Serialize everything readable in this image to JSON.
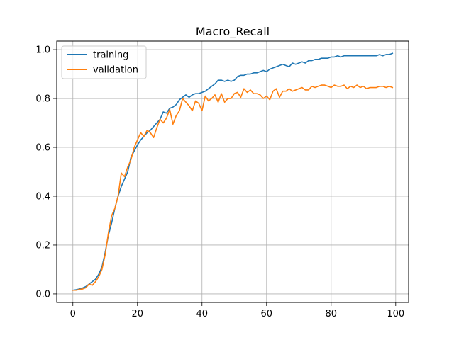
{
  "chart_data": {
    "type": "line",
    "title": "Macro_Recall",
    "xlabel": "",
    "ylabel": "",
    "xlim": [
      -5,
      104
    ],
    "ylim": [
      -0.035,
      1.035
    ],
    "xticks": [
      0,
      20,
      40,
      60,
      80,
      100
    ],
    "yticks": [
      0.0,
      0.2,
      0.4,
      0.6,
      0.8,
      1.0
    ],
    "xtick_labels": [
      "0",
      "20",
      "40",
      "60",
      "80",
      "100"
    ],
    "ytick_labels": [
      "0.0",
      "0.2",
      "0.4",
      "0.6",
      "0.8",
      "1.0"
    ],
    "grid": true,
    "legend_position": "top-left",
    "series": [
      {
        "name": "training",
        "color": "#1f77b4",
        "values": [
          0.015,
          0.017,
          0.02,
          0.024,
          0.03,
          0.04,
          0.05,
          0.06,
          0.08,
          0.11,
          0.17,
          0.24,
          0.29,
          0.35,
          0.4,
          0.44,
          0.47,
          0.5,
          0.56,
          0.585,
          0.61,
          0.63,
          0.645,
          0.66,
          0.67,
          0.685,
          0.7,
          0.715,
          0.745,
          0.74,
          0.76,
          0.765,
          0.775,
          0.795,
          0.805,
          0.815,
          0.805,
          0.815,
          0.82,
          0.82,
          0.825,
          0.83,
          0.84,
          0.85,
          0.86,
          0.875,
          0.875,
          0.87,
          0.875,
          0.87,
          0.875,
          0.89,
          0.895,
          0.895,
          0.9,
          0.9,
          0.905,
          0.905,
          0.91,
          0.915,
          0.91,
          0.92,
          0.925,
          0.93,
          0.935,
          0.94,
          0.935,
          0.93,
          0.945,
          0.94,
          0.945,
          0.95,
          0.945,
          0.955,
          0.955,
          0.96,
          0.96,
          0.965,
          0.965,
          0.965,
          0.97,
          0.97,
          0.975,
          0.97,
          0.975,
          0.975,
          0.975,
          0.975,
          0.975,
          0.975,
          0.975,
          0.975,
          0.975,
          0.975,
          0.975,
          0.98,
          0.975,
          0.98,
          0.98,
          0.985
        ]
      },
      {
        "name": "validation",
        "color": "#ff7f0e",
        "values": [
          0.015,
          0.015,
          0.018,
          0.02,
          0.025,
          0.04,
          0.035,
          0.05,
          0.07,
          0.1,
          0.16,
          0.25,
          0.32,
          0.35,
          0.4,
          0.495,
          0.48,
          0.52,
          0.55,
          0.6,
          0.63,
          0.66,
          0.645,
          0.67,
          0.66,
          0.64,
          0.68,
          0.715,
          0.7,
          0.72,
          0.755,
          0.695,
          0.73,
          0.75,
          0.8,
          0.785,
          0.77,
          0.75,
          0.79,
          0.78,
          0.75,
          0.81,
          0.79,
          0.8,
          0.815,
          0.785,
          0.82,
          0.785,
          0.8,
          0.8,
          0.82,
          0.825,
          0.805,
          0.84,
          0.825,
          0.835,
          0.82,
          0.82,
          0.815,
          0.8,
          0.81,
          0.795,
          0.83,
          0.84,
          0.805,
          0.83,
          0.83,
          0.84,
          0.83,
          0.835,
          0.84,
          0.845,
          0.835,
          0.835,
          0.85,
          0.845,
          0.85,
          0.855,
          0.855,
          0.85,
          0.845,
          0.855,
          0.85,
          0.85,
          0.855,
          0.84,
          0.85,
          0.845,
          0.855,
          0.845,
          0.85,
          0.84,
          0.845,
          0.845,
          0.845,
          0.85,
          0.85,
          0.845,
          0.85,
          0.845
        ]
      }
    ]
  }
}
